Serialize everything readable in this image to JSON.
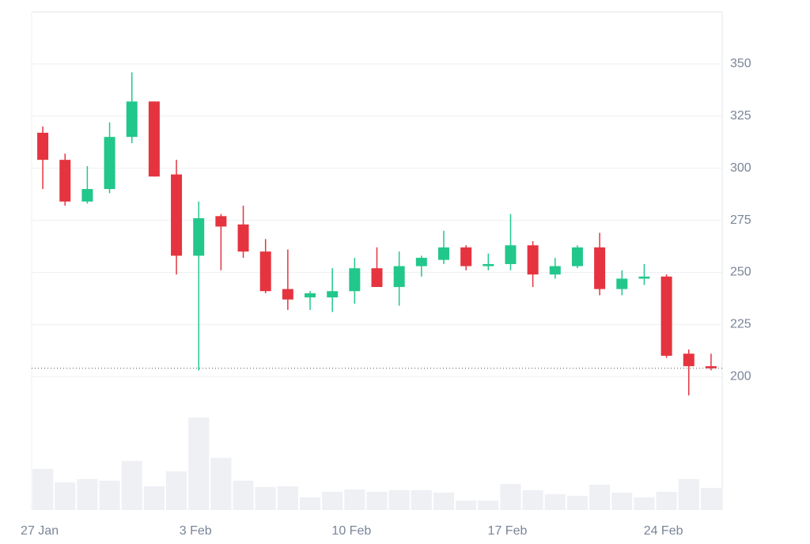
{
  "chart_data": {
    "type": "candlestick",
    "categories": [
      "27 Jan",
      null,
      null,
      null,
      null,
      null,
      null,
      "3 Feb",
      null,
      null,
      null,
      null,
      null,
      null,
      "10 Feb",
      null,
      null,
      null,
      null,
      null,
      null,
      "17 Feb",
      null,
      null,
      null,
      null,
      null,
      null,
      "24 Feb",
      null,
      null
    ],
    "open": [
      317,
      304,
      284,
      290,
      315,
      332,
      297,
      258,
      277,
      273,
      260,
      242,
      238,
      238,
      241,
      252,
      243,
      253,
      256,
      262,
      253,
      254,
      263,
      249,
      253,
      262,
      242,
      247,
      248,
      211,
      205
    ],
    "high": [
      320,
      307,
      301,
      322,
      346,
      332,
      304,
      284,
      278,
      282,
      266,
      261,
      241,
      252,
      257,
      262,
      260,
      258,
      270,
      263,
      259,
      278,
      265,
      257,
      263,
      269,
      251,
      254,
      249,
      213,
      211
    ],
    "low": [
      290,
      282,
      283,
      288,
      312,
      296,
      249,
      203,
      251,
      257,
      240,
      232,
      232,
      231,
      235,
      243,
      234,
      248,
      254,
      251,
      251,
      251,
      243,
      247,
      252,
      239,
      239,
      244,
      209,
      191,
      203
    ],
    "close": [
      304,
      284,
      290,
      315,
      332,
      296,
      258,
      276,
      272,
      260,
      241,
      237,
      240,
      241,
      252,
      243,
      253,
      257,
      262,
      253,
      254,
      263,
      249,
      253,
      262,
      242,
      247,
      248,
      210,
      205,
      204
    ],
    "volume": [
      52,
      35,
      39,
      37,
      62,
      30,
      49,
      117,
      66,
      37,
      29,
      30,
      16,
      23,
      26,
      23,
      25,
      25,
      22,
      12,
      12,
      33,
      25,
      20,
      18,
      32,
      22,
      16,
      23,
      39,
      28
    ],
    "volume_lim": [
      0,
      120
    ],
    "last_price": 204,
    "up_color": "#22c78b",
    "down_color": "#e5343f",
    "volume_color": "#eef0f4",
    "ylim": [
      136,
      375
    ],
    "yticks": [
      200,
      225,
      250,
      275,
      300,
      325,
      350
    ],
    "grid": true
  }
}
